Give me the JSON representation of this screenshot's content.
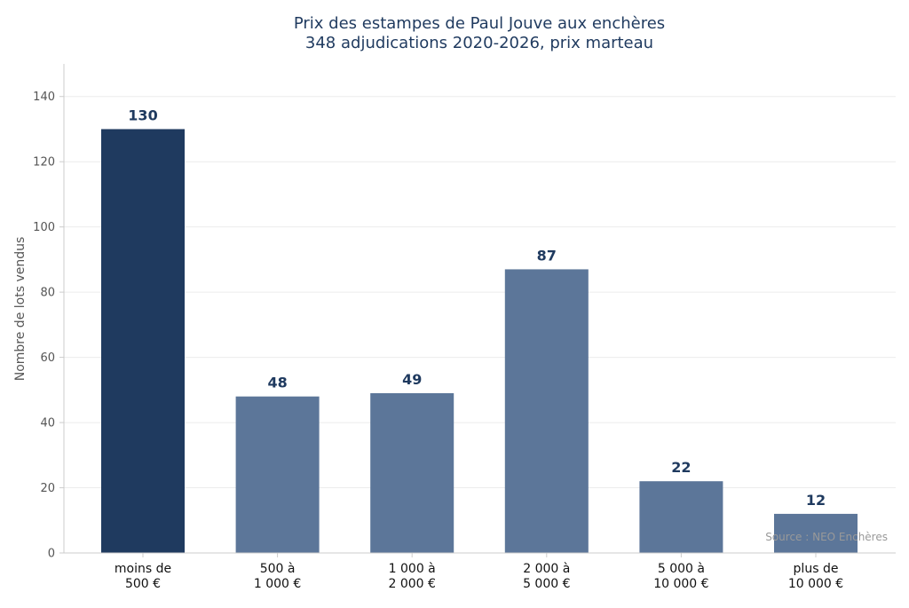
{
  "chart_data": {
    "type": "bar",
    "title_line1": "Prix des estampes de Paul Jouve aux enchères",
    "title_line2": "348 adjudications 2020-2026, prix marteau",
    "ylabel": "Nombre de lots vendus",
    "xlabel": "",
    "ylim": [
      0,
      150
    ],
    "yticks": [
      0,
      20,
      40,
      60,
      80,
      100,
      120,
      140
    ],
    "grid": true,
    "categories": [
      [
        "moins de",
        "500 €"
      ],
      [
        "500 à",
        "1 000 €"
      ],
      [
        "1 000 à",
        "2 000 €"
      ],
      [
        "2 000 à",
        "5 000 €"
      ],
      [
        "5 000 à",
        "10 000 €"
      ],
      [
        "plus de",
        "10 000 €"
      ]
    ],
    "values": [
      130,
      48,
      49,
      87,
      22,
      12
    ],
    "colors": {
      "highlight": "#1f3a5f",
      "bar": "#5c7699",
      "text": "#1f3a5f"
    },
    "highlight_index": 0,
    "source": "Source : NEO Enchères"
  }
}
